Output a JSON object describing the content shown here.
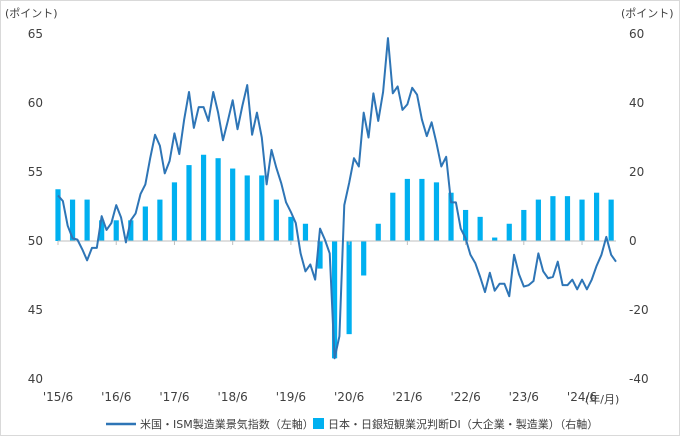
{
  "chart_data": {
    "type": "bar+line",
    "left_unit": "(ポイント)",
    "right_unit": "(ポイント)",
    "x_unit": "(年/月)",
    "left_axis": {
      "ylim": [
        40,
        65
      ],
      "ticks": [
        "40",
        "45",
        "50",
        "55",
        "60",
        "65"
      ]
    },
    "right_axis": {
      "ylim": [
        -40,
        60
      ],
      "ticks": [
        "-40",
        "-20",
        "0",
        "20",
        "40",
        "60"
      ]
    },
    "x_labels": [
      "'15/6",
      "'16/6",
      "'17/6",
      "'18/6",
      "'19/6",
      "'20/6",
      "'21/6",
      "'22/6",
      "'23/6",
      "'24/6"
    ],
    "grid": false,
    "legend_position": "bottom",
    "series": [
      {
        "name": "米国・ISM製造業景気指数（左軸）",
        "type": "line",
        "axis": "left",
        "color": "#2e75b6",
        "period": "2015/6 - 2025/6 monthly",
        "values": [
          53.3,
          52.9,
          51.1,
          50.2,
          50.1,
          49.4,
          48.6,
          49.5,
          49.5,
          51.8,
          50.8,
          51.3,
          52.6,
          51.7,
          49.9,
          51.5,
          52.0,
          53.4,
          54.1,
          56.0,
          57.7,
          56.9,
          54.9,
          55.8,
          57.8,
          56.3,
          58.8,
          60.8,
          58.2,
          59.7,
          59.7,
          58.7,
          60.8,
          59.3,
          57.3,
          58.7,
          60.2,
          58.1,
          59.8,
          61.3,
          57.7,
          59.3,
          57.5,
          54.1,
          56.6,
          55.3,
          54.2,
          52.8,
          52.1,
          51.3,
          49.1,
          47.8,
          48.3,
          47.2,
          50.9,
          50.1,
          49.1,
          41.5,
          43.1,
          52.6,
          54.2,
          56.0,
          55.4,
          59.3,
          57.5,
          60.7,
          58.7,
          60.8,
          64.7,
          60.7,
          61.2,
          59.5,
          59.9,
          61.1,
          60.6,
          58.8,
          57.6,
          58.6,
          57.1,
          55.4,
          56.1,
          52.8,
          52.8,
          50.9,
          50.2,
          49.0,
          48.4,
          47.4,
          46.3,
          47.7,
          46.4,
          46.9,
          46.9,
          46.0,
          49.0,
          47.6,
          46.7,
          46.8,
          47.1,
          49.1,
          47.8,
          47.3,
          47.4,
          48.5,
          46.8,
          46.8,
          47.2,
          46.5,
          47.2,
          46.5,
          47.2,
          48.2,
          49.0,
          50.3,
          49.0,
          48.5
        ]
      },
      {
        "name": "日本・日銀短観業況判断DI（大企業・製造業）（右軸）",
        "type": "bar",
        "axis": "right",
        "color": "#00b0f0",
        "period": "2015/6 - 2025/6 quarterly",
        "values": [
          15,
          12,
          12,
          6,
          6,
          6,
          10,
          12,
          17,
          22,
          25,
          24,
          21,
          19,
          19,
          12,
          7,
          5,
          -8,
          -34,
          -27,
          -10,
          5,
          14,
          18,
          18,
          17,
          14,
          9,
          7,
          1,
          5,
          9,
          12,
          13,
          13,
          12,
          14,
          12
        ]
      }
    ]
  }
}
